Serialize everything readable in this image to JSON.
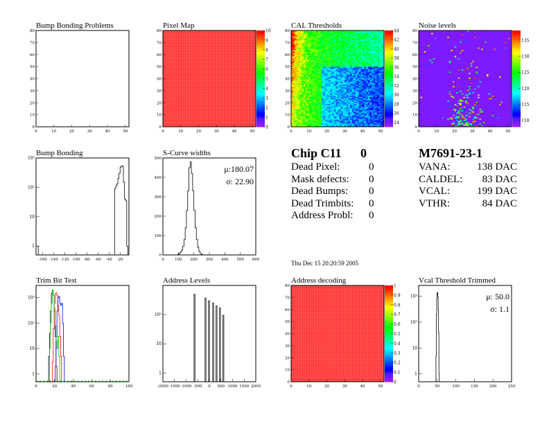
{
  "timestamp": "Thu Dec 15 20:20:59 2005",
  "chip_summary": {
    "title": "Chip C11",
    "number": "0",
    "rows": [
      {
        "label": "Dead Pixel:",
        "value": "0"
      },
      {
        "label": "Mask defects:",
        "value": "0"
      },
      {
        "label": "Dead Bumps:",
        "value": "0"
      },
      {
        "label": "Dead Trimbits:",
        "value": "0"
      },
      {
        "label": "Address Probl:",
        "value": "0"
      }
    ]
  },
  "module_summary": {
    "title": "M7691-23-1",
    "rows": [
      {
        "label": "VANA:",
        "value": "138 DAC"
      },
      {
        "label": "CALDEL:",
        "value": "83 DAC"
      },
      {
        "label": "VCAL:",
        "value": "199 DAC"
      },
      {
        "label": "VTHR:",
        "value": "84 DAC"
      }
    ]
  },
  "palette": "rainbow (purple to red)",
  "chart_data": [
    {
      "type": "heatmap",
      "title": "Bump Bonding Problems",
      "xlim": [
        0,
        52
      ],
      "ylim": [
        0,
        80
      ],
      "xticks": [
        "0",
        "10",
        "20",
        "30",
        "40",
        "50"
      ],
      "yticks": [
        "0",
        "10",
        "20",
        "30",
        "40",
        "50",
        "60",
        "70",
        "80"
      ],
      "content": "empty"
    },
    {
      "type": "heatmap",
      "title": "Pixel Map",
      "xlim": [
        0,
        52
      ],
      "ylim": [
        0,
        80
      ],
      "zlim": [
        0,
        10
      ],
      "uniform_value": 10,
      "xticks": [
        "0",
        "10",
        "20",
        "30",
        "40",
        "50"
      ],
      "yticks": [
        "0",
        "10",
        "20",
        "30",
        "40",
        "50",
        "60",
        "70",
        "80"
      ],
      "zticks": [
        "0",
        "1",
        "2",
        "3",
        "4",
        "5",
        "6",
        "7",
        "8",
        "9",
        "10"
      ]
    },
    {
      "type": "heatmap",
      "title": "CAL Thresholds",
      "xlim": [
        0,
        52
      ],
      "ylim": [
        0,
        80
      ],
      "zlim": [
        23,
        44
      ],
      "xticks": [
        "0",
        "10",
        "20",
        "30",
        "40",
        "50"
      ],
      "yticks": [
        "0",
        "10",
        "20",
        "30",
        "40",
        "50",
        "60",
        "70",
        "80"
      ],
      "zticks": [
        "24",
        "26",
        "28",
        "30",
        "32",
        "34",
        "36",
        "38",
        "40",
        "42",
        "44"
      ],
      "pattern": "high (38-42) at low column, decreasing to 26-30 at high column / low row"
    },
    {
      "type": "heatmap",
      "title": "Noise levels",
      "xlim": [
        0,
        52
      ],
      "ylim": [
        0,
        80
      ],
      "zlim": [
        108,
        138
      ],
      "xticks": [
        "0",
        "10",
        "20",
        "30",
        "40",
        "50"
      ],
      "yticks": [
        "0",
        "10",
        "20",
        "30",
        "40",
        "50",
        "60",
        "70",
        "80"
      ],
      "zticks": [
        "110",
        "115",
        "120",
        "125",
        "130",
        "135"
      ],
      "pattern": "mostly ~109; scattered higher pixels concentrated at columns 15-32, low rows"
    },
    {
      "type": "bar",
      "title": "Bump Bonding",
      "log_y": true,
      "xlim": [
        -172,
        -4
      ],
      "ylim": [
        0.5,
        1000
      ],
      "xticks": [
        "-160",
        "-140",
        "-120",
        "-100",
        "-80",
        "-60",
        "-40",
        "-20"
      ],
      "yticks": [
        "1",
        "10",
        "10²",
        "10³"
      ],
      "bin_width": 2,
      "bins": [
        [
          -171,
          1
        ],
        [
          -169,
          1
        ],
        [
          -29,
          90
        ],
        [
          -27,
          110
        ],
        [
          -25,
          130
        ],
        [
          -23,
          200
        ],
        [
          -21,
          300
        ],
        [
          -19,
          480
        ],
        [
          -17,
          540
        ],
        [
          -15,
          520
        ],
        [
          -13,
          150
        ],
        [
          -11,
          40
        ],
        [
          -9,
          35
        ],
        [
          -7,
          1
        ]
      ]
    },
    {
      "type": "bar",
      "title": "S-Curve widths",
      "xlim": [
        0,
        600
      ],
      "ylim": [
        0,
        500
      ],
      "xticks": [
        "0",
        "100",
        "200",
        "300",
        "400",
        "500",
        "600"
      ],
      "yticks": [
        "0",
        "100",
        "200",
        "300",
        "400",
        "500"
      ],
      "stats": [
        {
          "label": "μ:180.07"
        },
        {
          "label": "σ: 22.90"
        }
      ],
      "bin_width": 8,
      "bins": [
        [
          100,
          3
        ],
        [
          108,
          8
        ],
        [
          116,
          15
        ],
        [
          124,
          25
        ],
        [
          132,
          45
        ],
        [
          140,
          80
        ],
        [
          148,
          140
        ],
        [
          156,
          230
        ],
        [
          164,
          330
        ],
        [
          172,
          450
        ],
        [
          180,
          480
        ],
        [
          188,
          420
        ],
        [
          196,
          330
        ],
        [
          204,
          230
        ],
        [
          212,
          140
        ],
        [
          220,
          80
        ],
        [
          228,
          40
        ],
        [
          236,
          20
        ],
        [
          244,
          8
        ],
        [
          252,
          3
        ]
      ]
    },
    {
      "type": "bar",
      "title": "Trim Bit Test",
      "log_y": true,
      "xlim": [
        0,
        100
      ],
      "ylim": [
        0.5,
        3000
      ],
      "xticks": [
        "0",
        "20",
        "40",
        "60",
        "80",
        "100"
      ],
      "yticks": [
        "1",
        "10",
        "10²",
        "10³"
      ],
      "bin_width": 1,
      "series": [
        {
          "color": "#000000",
          "bins": [
            [
              14,
              5
            ],
            [
              15,
              40
            ],
            [
              16,
              300
            ],
            [
              17,
              1500
            ],
            [
              18,
              2000
            ],
            [
              19,
              1200
            ],
            [
              20,
              300
            ],
            [
              21,
              30
            ],
            [
              22,
              2
            ]
          ]
        },
        {
          "color": "#ff0000",
          "bins": [
            [
              18,
              3
            ],
            [
              19,
              60
            ],
            [
              20,
              600
            ],
            [
              21,
              1400
            ],
            [
              22,
              1500
            ],
            [
              23,
              1200
            ],
            [
              24,
              500
            ],
            [
              25,
              200
            ],
            [
              26,
              30
            ],
            [
              27,
              5
            ]
          ]
        },
        {
          "color": "#0000ff",
          "bins": [
            [
              21,
              2
            ],
            [
              22,
              30
            ],
            [
              23,
              300
            ],
            [
              24,
              1000
            ],
            [
              25,
              1100
            ],
            [
              26,
              600
            ],
            [
              27,
              500
            ],
            [
              28,
              600
            ],
            [
              29,
              100
            ],
            [
              30,
              5
            ]
          ]
        },
        {
          "color": "#00cc00",
          "bins": [
            [
              15,
              10
            ],
            [
              16,
              100
            ],
            [
              17,
              600
            ],
            [
              18,
              2000
            ],
            [
              19,
              1200
            ],
            [
              20,
              400
            ],
            [
              21,
              80
            ],
            [
              22,
              20
            ],
            [
              23,
              10
            ],
            [
              24,
              30
            ],
            [
              25,
              5
            ]
          ]
        }
      ]
    },
    {
      "type": "bar",
      "title": "Address Levels",
      "log_y": true,
      "xlim": [
        -2000,
        2000
      ],
      "ylim": [
        0.5,
        1000
      ],
      "xticks": [
        "-2000",
        "-1500",
        "-1000",
        "-500",
        "0",
        "500",
        "1000",
        "1500",
        "2000"
      ],
      "yticks": [
        "1",
        "10",
        "10²"
      ],
      "bin_width": 40,
      "bins": [
        [
          -640,
          500
        ],
        [
          -165,
          370
        ],
        [
          -15,
          300
        ],
        [
          165,
          250
        ],
        [
          310,
          200
        ],
        [
          460,
          170
        ],
        [
          605,
          95
        ]
      ]
    },
    {
      "type": "heatmap",
      "title": "Address decoding",
      "xlim": [
        0,
        52
      ],
      "ylim": [
        0,
        80
      ],
      "zlim": [
        0,
        1
      ],
      "uniform_value": 1,
      "xticks": [
        "0",
        "10",
        "20",
        "30",
        "40",
        "50"
      ],
      "yticks": [
        "0",
        "10",
        "20",
        "30",
        "40",
        "50",
        "60",
        "70",
        "80"
      ],
      "zticks": [
        "0",
        "0.1",
        "0.2",
        "0.3",
        "0.4",
        "0.5",
        "0.6",
        "0.7",
        "0.8",
        "0.9",
        "1"
      ]
    },
    {
      "type": "bar",
      "title": "Vcal Threshold Trimmed",
      "log_y": true,
      "xlim": [
        0,
        250
      ],
      "ylim": [
        0.5,
        2600
      ],
      "xticks": [
        "0",
        "50",
        "100",
        "150",
        "200",
        "250"
      ],
      "yticks": [
        "1",
        "10",
        "10²",
        "10³"
      ],
      "stats": [
        {
          "label": "μ: 50.0"
        },
        {
          "label": "σ:  1.1"
        }
      ],
      "bin_width": 1,
      "bins": [
        [
          47,
          5
        ],
        [
          48,
          200
        ],
        [
          49,
          800
        ],
        [
          50,
          1300
        ],
        [
          51,
          1400
        ],
        [
          52,
          1000
        ],
        [
          53,
          300
        ],
        [
          54,
          40
        ],
        [
          55,
          1
        ]
      ]
    }
  ]
}
